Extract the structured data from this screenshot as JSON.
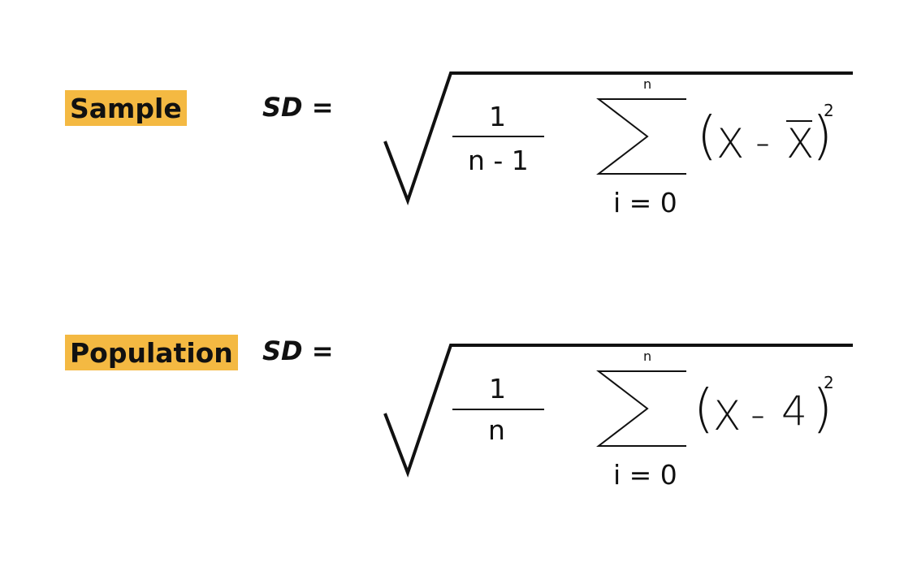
{
  "sample": {
    "label": "Sample",
    "sd": "SD =",
    "fraction_numerator": "1",
    "fraction_denominator": "n - 1",
    "sum_upper": "n",
    "sum_lower": "i = 0",
    "open_paren": "(",
    "var_x": "X",
    "minus": "-",
    "mean_x": "X",
    "close_paren": ")",
    "exponent": "2"
  },
  "population": {
    "label": "Population",
    "sd": "SD =",
    "fraction_numerator": "1",
    "fraction_denominator": "n",
    "sum_upper": "n",
    "sum_lower": "i = 0",
    "open_paren": "(",
    "var_x": "X",
    "minus": "-",
    "mean_symbol": "4",
    "close_paren": ")",
    "exponent": "2"
  },
  "colors": {
    "label_highlight": "#f4b942",
    "ink": "#111111"
  }
}
